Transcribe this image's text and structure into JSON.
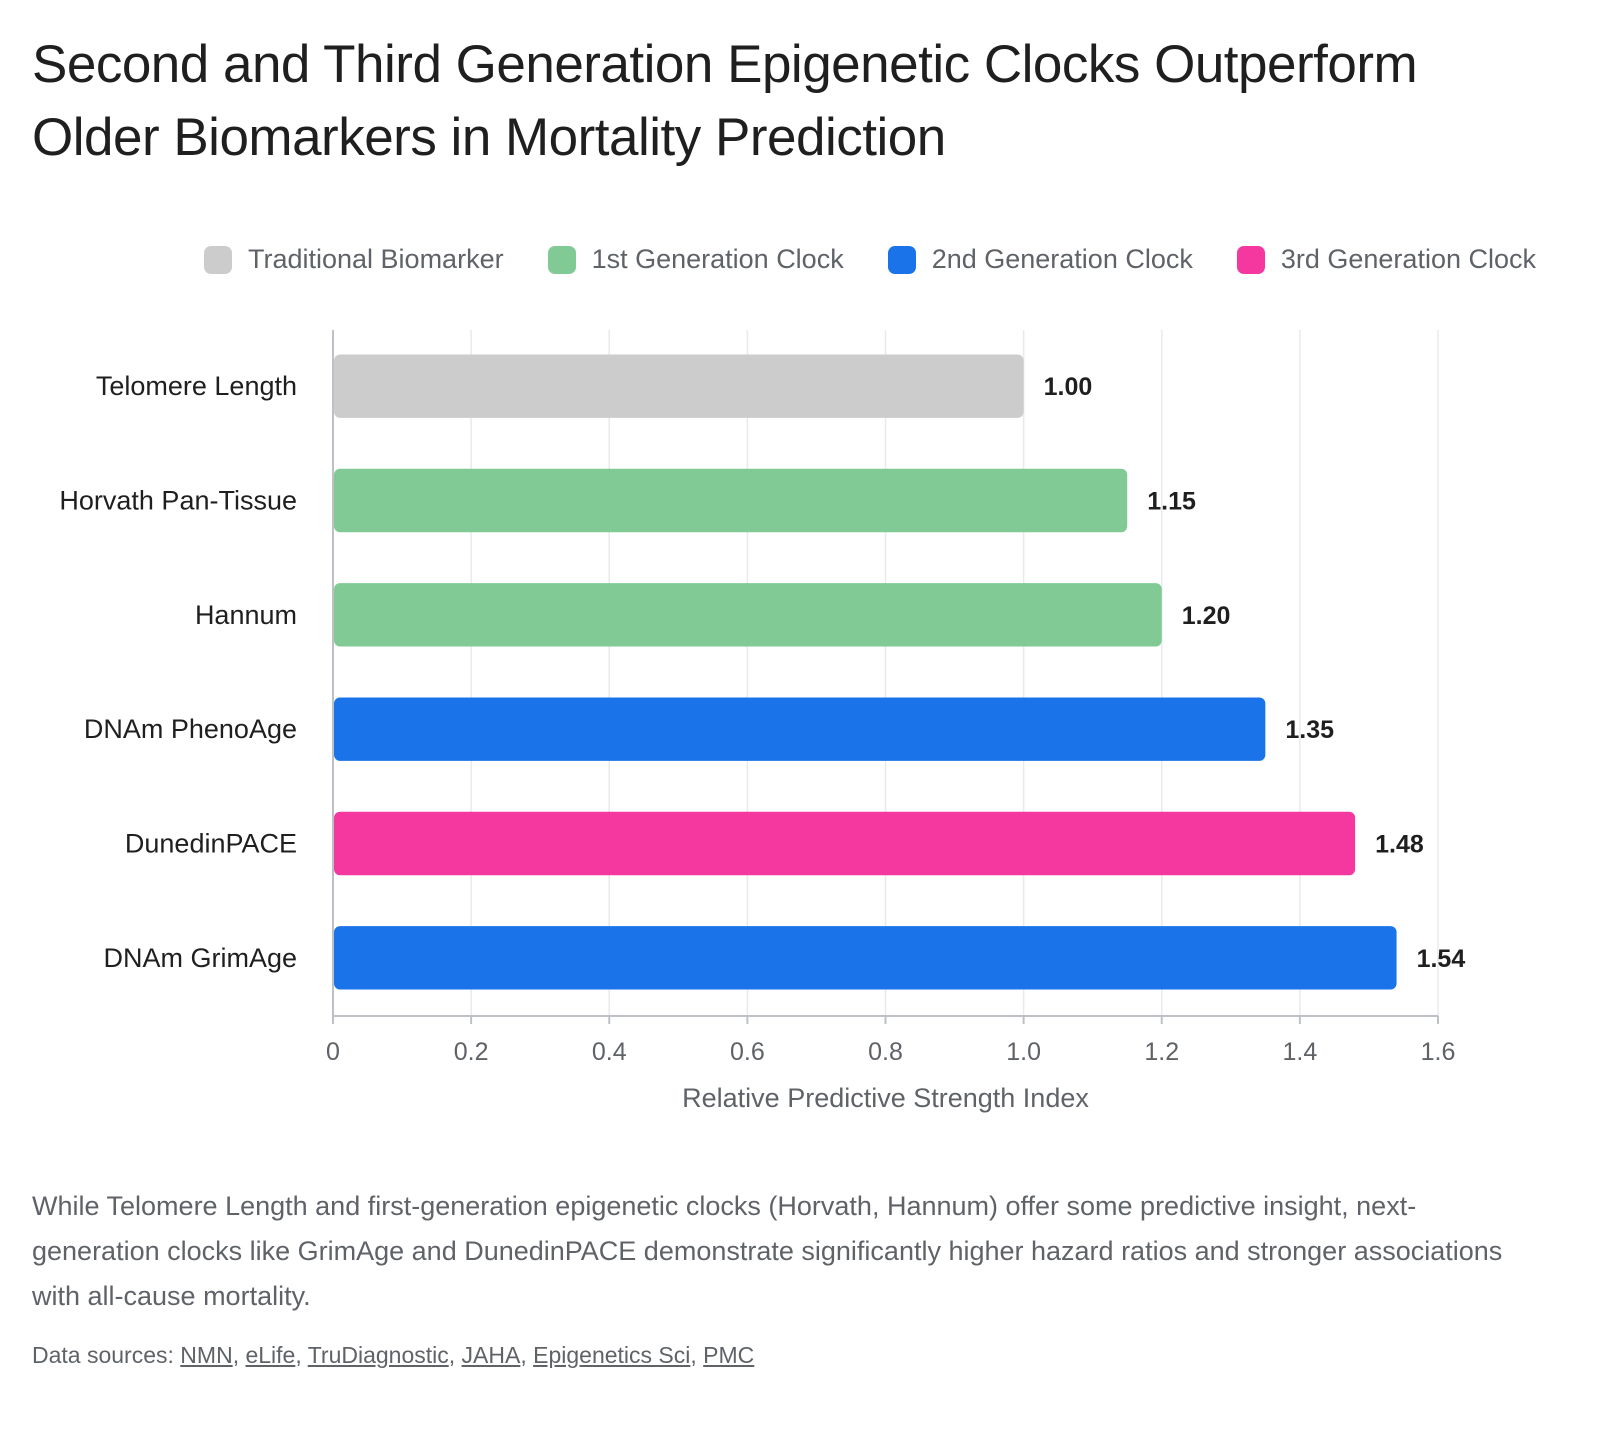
{
  "title": "Second and Third Generation Epigenetic Clocks Outperform Older Biomarkers in Mortality Prediction",
  "legend": [
    {
      "label": "Traditional Biomarker",
      "color": "#cccccc"
    },
    {
      "label": "1st Generation Clock",
      "color": "#81c995"
    },
    {
      "label": "2nd Generation Clock",
      "color": "#1a73e8"
    },
    {
      "label": "3rd Generation Clock",
      "color": "#f538a0"
    }
  ],
  "chart_data": {
    "type": "bar",
    "orientation": "horizontal",
    "categories": [
      "Telomere Length",
      "Horvath Pan-Tissue",
      "Hannum",
      "DNAm PhenoAge",
      "DunedinPACE",
      "DNAm GrimAge"
    ],
    "values": [
      1.0,
      1.15,
      1.2,
      1.35,
      1.48,
      1.54
    ],
    "value_labels": [
      "1.00",
      "1.15",
      "1.20",
      "1.35",
      "1.48",
      "1.54"
    ],
    "groups": [
      "Traditional Biomarker",
      "1st Generation Clock",
      "1st Generation Clock",
      "2nd Generation Clock",
      "3rd Generation Clock",
      "2nd Generation Clock"
    ],
    "xlabel": "Relative Predictive Strength Index",
    "xlim": [
      0,
      1.6
    ],
    "xticks": [
      0,
      0.2,
      0.4,
      0.6,
      0.8,
      1.0,
      1.2,
      1.4,
      1.6
    ],
    "xtick_labels": [
      "0",
      "0.2",
      "0.4",
      "0.6",
      "0.8",
      "1.0",
      "1.2",
      "1.4",
      "1.6"
    ],
    "grid": "vertical",
    "legend_position": "top-right"
  },
  "caption": "While Telomere Length and first-generation epigenetic clocks (Horvath, Hannum) offer some predictive insight, next-generation clocks like GrimAge and DunedinPACE demonstrate significantly higher hazard ratios and stronger associations with all-cause mortality.",
  "sources": {
    "prefix": "Data sources:",
    "links": [
      "NMN",
      "eLife",
      "TruDiagnostic",
      "JAHA",
      "Epigenetics Sci",
      "PMC"
    ]
  }
}
